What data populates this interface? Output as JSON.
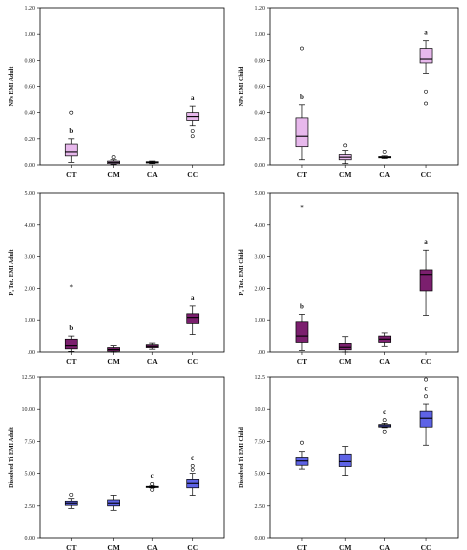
{
  "chart_data": [
    {
      "type": "box",
      "ylabel": "NPs EMI Adult",
      "ylim": [
        0,
        1.2
      ],
      "yticks": [
        "0.00",
        "0.20",
        "0.40",
        "0.60",
        "0.80",
        "1.00",
        "1.20"
      ],
      "categories": [
        "CT",
        "CM",
        "CA",
        "CC"
      ],
      "color": "#e7b8ec",
      "boxes": [
        {
          "category": "CT",
          "min": 0.02,
          "q1": 0.07,
          "median": 0.1,
          "q3": 0.16,
          "max": 0.2,
          "outliers": [
            0.4
          ],
          "extremes": [],
          "letter": "b"
        },
        {
          "category": "CM",
          "min": 0.005,
          "q1": 0.01,
          "median": 0.02,
          "q3": 0.03,
          "max": 0.04,
          "outliers": [
            0.06
          ],
          "extremes": [],
          "letter": ""
        },
        {
          "category": "CA",
          "min": 0.01,
          "q1": 0.015,
          "median": 0.02,
          "q3": 0.025,
          "max": 0.03,
          "outliers": [],
          "extremes": [],
          "letter": ""
        },
        {
          "category": "CC",
          "min": 0.3,
          "q1": 0.34,
          "median": 0.37,
          "q3": 0.4,
          "max": 0.45,
          "outliers": [
            0.26,
            0.22
          ],
          "extremes": [],
          "letter": "a"
        }
      ]
    },
    {
      "type": "box",
      "ylabel": "NPs EMI Child",
      "ylim": [
        0,
        1.2
      ],
      "yticks": [
        "0.00",
        "0.20",
        "0.40",
        "0.60",
        "0.80",
        "1.00",
        "1.20"
      ],
      "categories": [
        "CT",
        "CM",
        "CA",
        "CC"
      ],
      "color": "#e7b8ec",
      "boxes": [
        {
          "category": "CT",
          "min": 0.04,
          "q1": 0.14,
          "median": 0.22,
          "q3": 0.36,
          "max": 0.46,
          "outliers": [
            0.89
          ],
          "extremes": [],
          "letter": "b"
        },
        {
          "category": "CM",
          "min": 0.01,
          "q1": 0.04,
          "median": 0.06,
          "q3": 0.08,
          "max": 0.11,
          "outliers": [
            0.15
          ],
          "extremes": [],
          "letter": ""
        },
        {
          "category": "CA",
          "min": 0.05,
          "q1": 0.055,
          "median": 0.06,
          "q3": 0.065,
          "max": 0.07,
          "outliers": [
            0.1
          ],
          "extremes": [],
          "letter": ""
        },
        {
          "category": "CC",
          "min": 0.7,
          "q1": 0.78,
          "median": 0.81,
          "q3": 0.89,
          "max": 0.95,
          "outliers": [
            0.56,
            0.47
          ],
          "extremes": [],
          "letter": "a"
        }
      ]
    },
    {
      "type": "box",
      "ylabel": "P₃ Tot. EMI Adult",
      "ylim": [
        0,
        5.0
      ],
      "yticks": [
        ".00",
        "1.00",
        "2.00",
        "3.00",
        "4.00",
        "5.00"
      ],
      "categories": [
        "CT",
        "CM",
        "CA",
        "CC"
      ],
      "color": "#7b1f6e",
      "boxes": [
        {
          "category": "CT",
          "min": 0.02,
          "q1": 0.1,
          "median": 0.2,
          "q3": 0.4,
          "max": 0.5,
          "outliers": [],
          "extremes": [
            2.05
          ],
          "letter": "b"
        },
        {
          "category": "CM",
          "min": 0.0,
          "q1": 0.03,
          "median": 0.08,
          "q3": 0.14,
          "max": 0.2,
          "outliers": [],
          "extremes": [],
          "letter": ""
        },
        {
          "category": "CA",
          "min": 0.09,
          "q1": 0.14,
          "median": 0.18,
          "q3": 0.23,
          "max": 0.28,
          "outliers": [],
          "extremes": [],
          "letter": ""
        },
        {
          "category": "CC",
          "min": 0.55,
          "q1": 0.9,
          "median": 1.08,
          "q3": 1.2,
          "max": 1.45,
          "outliers": [],
          "extremes": [],
          "letter": "a"
        }
      ]
    },
    {
      "type": "box",
      "ylabel": "P₃ Tot. EMI Child",
      "ylim": [
        0,
        5.0
      ],
      "yticks": [
        ".00",
        "1.00",
        "2.00",
        "3.00",
        "4.00",
        "5.00"
      ],
      "categories": [
        "CT",
        "CM",
        "CA",
        "CC"
      ],
      "color": "#7b1f6e",
      "boxes": [
        {
          "category": "CT",
          "min": 0.05,
          "q1": 0.3,
          "median": 0.5,
          "q3": 0.95,
          "max": 1.18,
          "outliers": [],
          "extremes": [
            4.55
          ],
          "letter": "b"
        },
        {
          "category": "CM",
          "min": 0.0,
          "q1": 0.07,
          "median": 0.15,
          "q3": 0.27,
          "max": 0.48,
          "outliers": [],
          "extremes": [],
          "letter": ""
        },
        {
          "category": "CA",
          "min": 0.18,
          "q1": 0.3,
          "median": 0.4,
          "q3": 0.5,
          "max": 0.6,
          "outliers": [],
          "extremes": [],
          "letter": ""
        },
        {
          "category": "CC",
          "min": 1.15,
          "q1": 1.92,
          "median": 2.43,
          "q3": 2.58,
          "max": 3.2,
          "outliers": [],
          "extremes": [],
          "letter": "a"
        }
      ]
    },
    {
      "type": "box",
      "ylabel": "Dissolved Ti EMI Adult",
      "ylim": [
        0,
        12.5
      ],
      "yticks": [
        "0.00",
        "2.50",
        "5.00",
        "7.50",
        "10.00",
        "12.50"
      ],
      "categories": [
        "CT",
        "CM",
        "CA",
        "CC"
      ],
      "color": "#5e63e6",
      "boxes": [
        {
          "category": "CT",
          "min": 2.3,
          "q1": 2.55,
          "median": 2.7,
          "q3": 2.85,
          "max": 3.05,
          "outliers": [
            3.35
          ],
          "extremes": [],
          "letter": ""
        },
        {
          "category": "CM",
          "min": 2.15,
          "q1": 2.5,
          "median": 2.7,
          "q3": 2.95,
          "max": 3.3,
          "outliers": [],
          "extremes": [],
          "letter": ""
        },
        {
          "category": "CA",
          "min": 3.9,
          "q1": 3.93,
          "median": 3.97,
          "q3": 4.02,
          "max": 4.05,
          "outliers": [
            3.75,
            4.2
          ],
          "extremes": [],
          "letter": "c"
        },
        {
          "category": "CC",
          "min": 3.3,
          "q1": 3.9,
          "median": 4.25,
          "q3": 4.55,
          "max": 5.0,
          "outliers": [
            5.3,
            5.6
          ],
          "extremes": [],
          "letter": "c"
        }
      ]
    },
    {
      "type": "box",
      "ylabel": "Dissolved Ti EMI Child",
      "ylim": [
        0,
        12.5
      ],
      "yticks": [
        "0.00",
        "2.50",
        "5.00",
        "7.50",
        "10.0",
        "12.5"
      ],
      "categories": [
        "CT",
        "CM",
        "CA",
        "CC"
      ],
      "color": "#5e63e6",
      "boxes": [
        {
          "category": "CT",
          "min": 5.35,
          "q1": 5.65,
          "median": 6.0,
          "q3": 6.25,
          "max": 6.7,
          "outliers": [
            7.4
          ],
          "extremes": [],
          "letter": ""
        },
        {
          "category": "CM",
          "min": 4.85,
          "q1": 5.55,
          "median": 5.95,
          "q3": 6.5,
          "max": 7.1,
          "outliers": [],
          "extremes": [],
          "letter": ""
        },
        {
          "category": "CA",
          "min": 8.55,
          "q1": 8.6,
          "median": 8.7,
          "q3": 8.8,
          "max": 8.9,
          "outliers": [
            8.25,
            9.15
          ],
          "extremes": [],
          "letter": "c"
        },
        {
          "category": "CC",
          "min": 7.2,
          "q1": 8.6,
          "median": 9.3,
          "q3": 9.85,
          "max": 10.4,
          "outliers": [
            11.0,
            12.3
          ],
          "extremes": [],
          "letter": "c"
        }
      ]
    }
  ]
}
